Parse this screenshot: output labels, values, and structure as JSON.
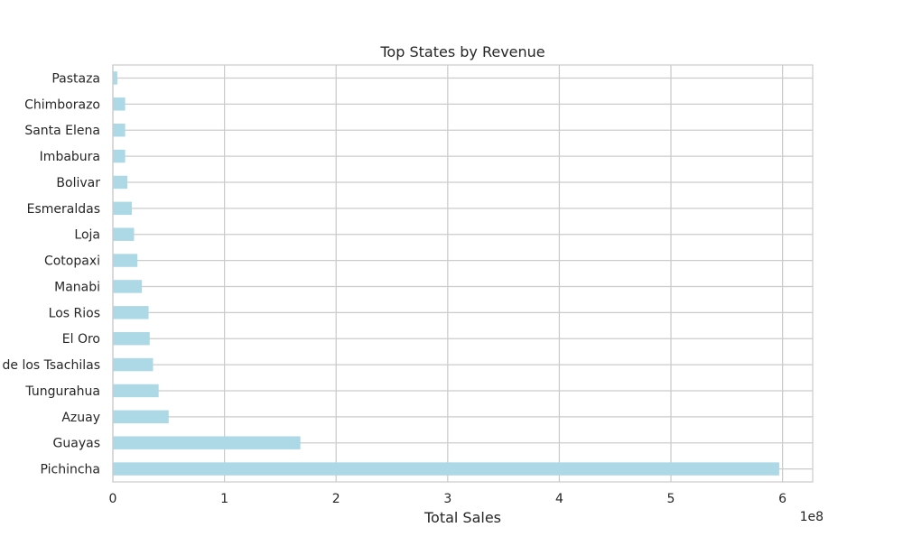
{
  "chart_data": {
    "type": "bar",
    "orientation": "horizontal",
    "title": "Top States by Revenue",
    "xlabel": "Total Sales",
    "ylabel": "",
    "x_offset_text": "1e8",
    "x_scale_factor": 100000000,
    "xlim": [
      0,
      6.27
    ],
    "xticks": [
      0,
      1,
      2,
      3,
      4,
      5,
      6
    ],
    "xtick_labels": [
      "0",
      "1",
      "2",
      "3",
      "4",
      "5",
      "6"
    ],
    "grid": true,
    "bar_color": "#ADD8E6",
    "categories": [
      "Pichincha",
      "Guayas",
      "Azuay",
      "Tungurahua",
      "Santo Domingo de los Tsachilas",
      "El Oro",
      "Los Rios",
      "Manabi",
      "Cotopaxi",
      "Loja",
      "Esmeraldas",
      "Bolivar",
      "Imbabura",
      "Santa Elena",
      "Chimborazo",
      "Pastaza"
    ],
    "values": [
      5.97,
      1.68,
      0.5,
      0.41,
      0.36,
      0.33,
      0.32,
      0.26,
      0.22,
      0.19,
      0.17,
      0.13,
      0.11,
      0.11,
      0.11,
      0.04
    ],
    "value_units": "1e8"
  }
}
